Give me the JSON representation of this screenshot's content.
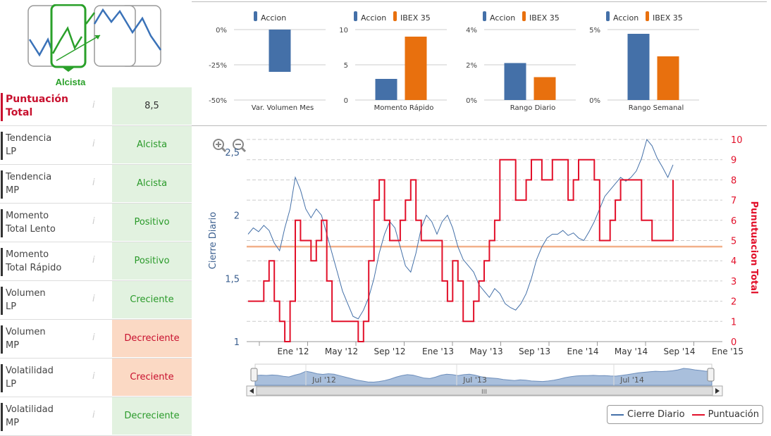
{
  "trend": {
    "label": "Alcista"
  },
  "rows": [
    {
      "name": "Puntuación\nTotal",
      "value": "8,5",
      "status": "neutral",
      "total": true
    },
    {
      "name": "Tendencia\nLP",
      "value": "Alcista",
      "status": "good"
    },
    {
      "name": "Tendencia\nMP",
      "value": "Alcista",
      "status": "good"
    },
    {
      "name": "Momento\nTotal Lento",
      "value": "Positivo",
      "status": "good"
    },
    {
      "name": "Momento\nTotal Rápido",
      "value": "Positivo",
      "status": "good"
    },
    {
      "name": "Volumen\nLP",
      "value": "Creciente",
      "status": "good"
    },
    {
      "name": "Volumen\nMP",
      "value": "Decreciente",
      "status": "bad"
    },
    {
      "name": "Volatilidad\nLP",
      "value": "Creciente",
      "status": "bad"
    },
    {
      "name": "Volatilidad\nMP",
      "value": "Decreciente",
      "status": "good"
    }
  ],
  "info_glyph": "i",
  "colors": {
    "accion": "#4470a8",
    "ibex": "#e8700e",
    "score": "#e2102a",
    "close": "#4470a8",
    "threshold": "#f2b08a"
  },
  "chart_data": [
    {
      "type": "bar",
      "title": "Var. Volumen Mes",
      "series": [
        {
          "name": "Accion",
          "values": [
            -30
          ]
        }
      ],
      "unit": "%",
      "ylim": [
        -50,
        0
      ],
      "ticks": [
        "0%",
        "-25%",
        "-50%"
      ]
    },
    {
      "type": "bar",
      "title": "Momento Rápido",
      "series": [
        {
          "name": "Accion",
          "values": [
            3
          ]
        },
        {
          "name": "IBEX 35",
          "values": [
            9
          ]
        }
      ],
      "ylim": [
        0,
        10
      ],
      "ticks": [
        "10",
        "5",
        "0"
      ]
    },
    {
      "type": "bar",
      "title": "Rango Diario",
      "series": [
        {
          "name": "Accion",
          "values": [
            2.1
          ]
        },
        {
          "name": "IBEX 35",
          "values": [
            1.3
          ]
        }
      ],
      "ylim": [
        0,
        4
      ],
      "ticks": [
        "4%",
        "2%",
        "0%"
      ]
    },
    {
      "type": "bar",
      "title": "Rango Semanal",
      "series": [
        {
          "name": "Accion",
          "values": [
            4.7
          ]
        },
        {
          "name": "IBEX 35",
          "values": [
            3.1
          ]
        }
      ],
      "ylim": [
        0,
        5
      ],
      "ticks": [
        "5%",
        "0%"
      ]
    },
    {
      "type": "line",
      "ylabel": "Cierre Diario",
      "y2label": "Punutuacion Total",
      "ylim": [
        1,
        2.6
      ],
      "y2lim": [
        0,
        10
      ],
      "yticks": [
        "2,5",
        "2",
        "1,5",
        "1"
      ],
      "y2ticks": [
        "10",
        "9",
        "8",
        "7",
        "6",
        "5",
        "4",
        "3",
        "2",
        "1",
        "0"
      ],
      "xticks": [
        "Ene '12",
        "May '12",
        "Sep '12",
        "Ene '13",
        "May '13",
        "Sep '13",
        "Ene '14",
        "May '14",
        "Sep '14",
        "Ene '15"
      ],
      "navigator_labels": [
        "Jul '12",
        "Jul '13",
        "Jul '14"
      ],
      "navigator_grip": "III",
      "threshold": 4.7,
      "series": [
        {
          "name": "Cierre Diario",
          "axis": "left",
          "values": [
            1.85,
            1.9,
            1.87,
            1.92,
            1.88,
            1.78,
            1.72,
            1.9,
            2.05,
            2.3,
            2.2,
            2.05,
            1.98,
            2.05,
            2.0,
            1.85,
            1.7,
            1.55,
            1.4,
            1.3,
            1.2,
            1.18,
            1.25,
            1.35,
            1.5,
            1.7,
            1.85,
            1.95,
            1.9,
            1.75,
            1.6,
            1.55,
            1.7,
            1.9,
            2.0,
            1.95,
            1.85,
            1.95,
            2.0,
            1.9,
            1.75,
            1.65,
            1.6,
            1.55,
            1.45,
            1.4,
            1.35,
            1.42,
            1.38,
            1.3,
            1.27,
            1.25,
            1.3,
            1.38,
            1.5,
            1.65,
            1.75,
            1.82,
            1.85,
            1.85,
            1.88,
            1.84,
            1.86,
            1.82,
            1.8,
            1.87,
            1.95,
            2.05,
            2.15,
            2.2,
            2.25,
            2.3,
            2.27,
            2.3,
            2.35,
            2.45,
            2.6,
            2.55,
            2.45,
            2.38,
            2.3,
            2.4
          ]
        },
        {
          "name": "Puntuación",
          "axis": "right",
          "values": [
            2,
            2,
            2,
            3,
            4,
            2,
            1,
            0,
            2,
            6,
            5,
            5,
            4,
            5,
            6,
            3,
            1,
            1,
            1,
            1,
            1,
            0,
            1,
            4,
            7,
            8,
            6,
            5,
            5,
            6,
            7,
            8,
            6,
            5,
            5,
            5,
            5,
            3,
            2,
            4,
            3,
            1,
            1,
            2,
            3,
            4,
            5,
            6,
            9,
            9,
            9,
            7,
            7,
            8,
            9,
            9,
            8,
            8,
            9,
            9,
            9,
            7,
            8,
            9,
            9,
            9,
            8,
            5,
            5,
            6,
            7,
            8,
            8,
            8,
            8,
            6,
            6,
            5,
            5,
            5,
            5,
            8
          ]
        }
      ]
    }
  ],
  "legend": [
    {
      "label": "Cierre Diario",
      "color": "#4470a8"
    },
    {
      "label": "Puntuación",
      "color": "#e2102a"
    }
  ]
}
